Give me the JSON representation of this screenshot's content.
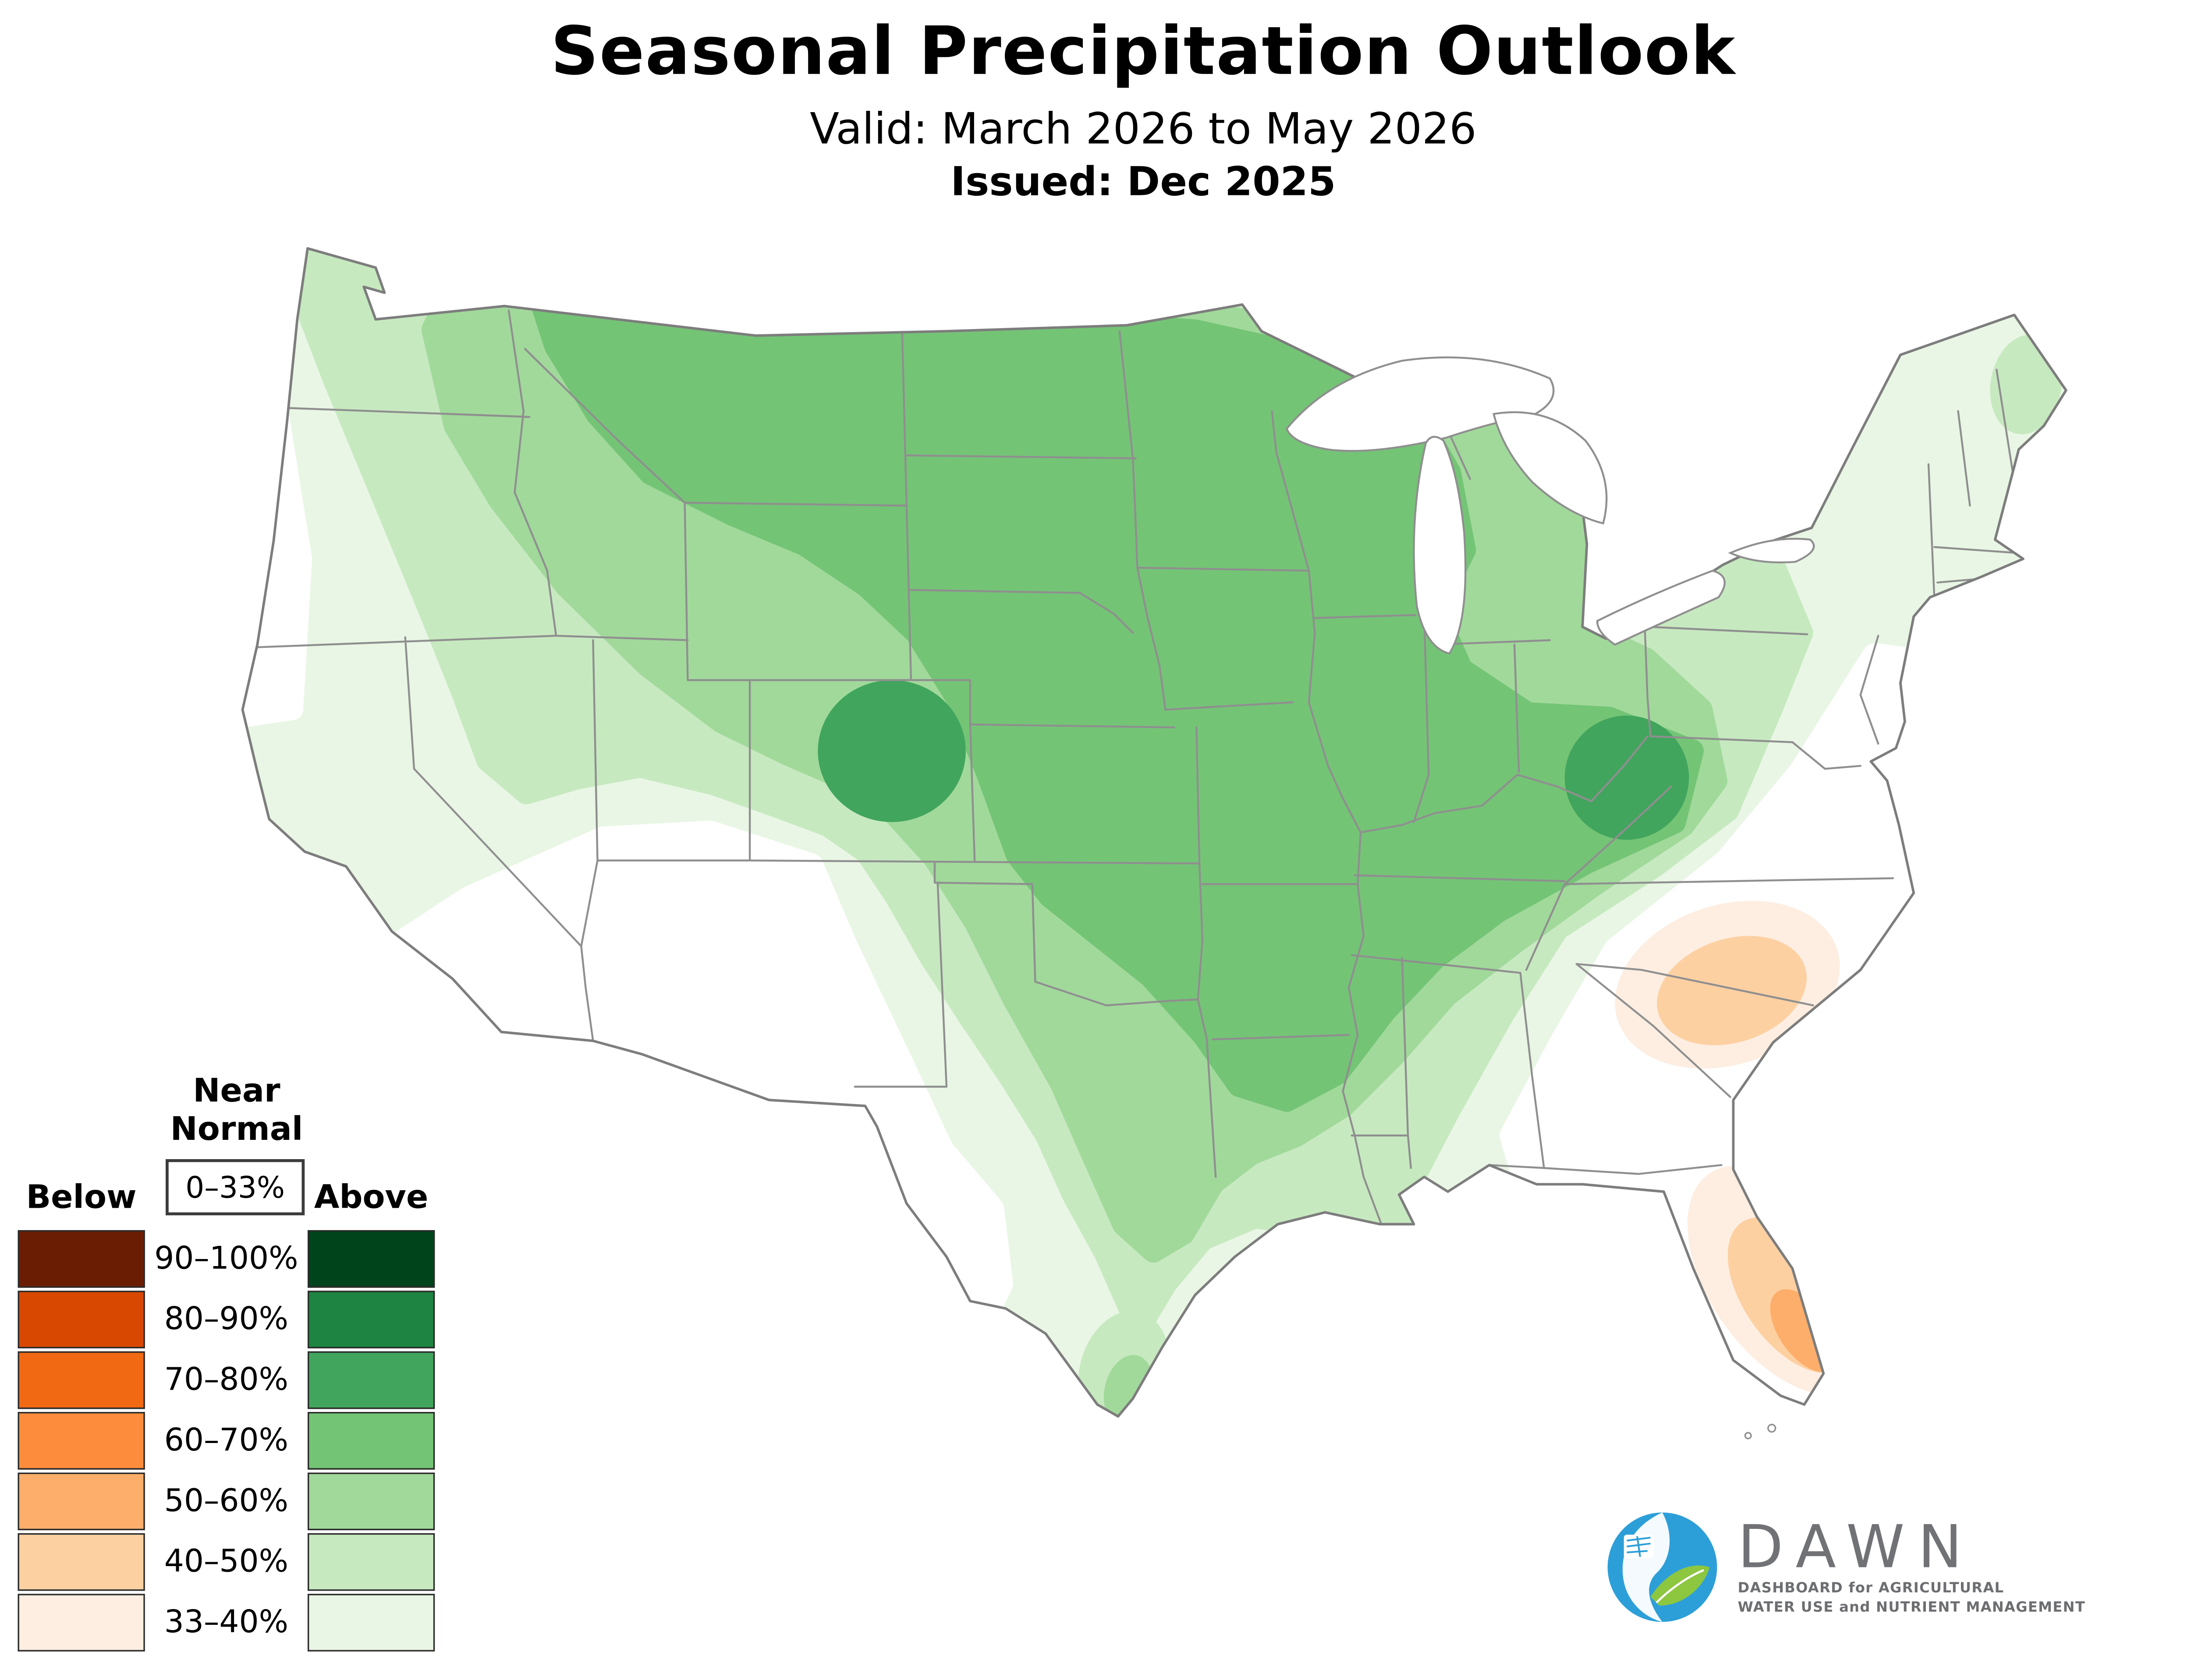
{
  "header": {
    "title": "Seasonal Precipitation Outlook",
    "valid_line": "Valid: March 2026 to May 2026",
    "issued_line": "Issued: Dec 2025"
  },
  "legend": {
    "near_normal_label": "Near Normal",
    "near_normal_range": "0–33%",
    "below_label": "Below",
    "above_label": "Above",
    "rows": [
      {
        "range": "90–100%",
        "below": "#6b1d04",
        "above": "#00441b"
      },
      {
        "range": "80–90%",
        "below": "#d94801",
        "above": "#1d8441"
      },
      {
        "range": "70–80%",
        "below": "#f16913",
        "above": "#41a55d"
      },
      {
        "range": "60–70%",
        "below": "#fd8d3c",
        "above": "#74c476"
      },
      {
        "range": "50–60%",
        "below": "#fdae6b",
        "above": "#a1d99b"
      },
      {
        "range": "40–50%",
        "below": "#fdd0a2",
        "above": "#c7e9c0"
      },
      {
        "range": "33–40%",
        "below": "#fdeee1",
        "above": "#e9f6e5"
      }
    ]
  },
  "map": {
    "region": "Contiguous United States",
    "variable": "Seasonal precipitation outlook probability",
    "features": [
      {
        "area": "Northern Rockies, Northern Plains, Upper Midwest, Mid-South corridor",
        "category": "Above",
        "probability": "60–70%"
      },
      {
        "area": "Southeast Wyoming / Nebraska panhandle",
        "category": "Above",
        "probability": "70–80%"
      },
      {
        "area": "Ohio Valley",
        "category": "Above",
        "probability": "70–80%"
      },
      {
        "area": "Broad central, northern and eastern U.S.",
        "category": "Above",
        "probability": "33–60%"
      },
      {
        "area": "Southwest (southern California, Arizona, New Mexico, far west Texas)",
        "category": "Near Normal",
        "probability": "0–33%"
      },
      {
        "area": "Southeast coastal plain (Virginia to Georgia) and south Texas band",
        "category": "Near Normal",
        "probability": "0–33%"
      },
      {
        "area": "South Carolina",
        "category": "Below",
        "probability": "40–50%"
      },
      {
        "area": "Central and southern Florida peninsula",
        "category": "Below",
        "probability": "40–60%"
      }
    ],
    "border_color": "#8f8f8f",
    "water_color": "#ffffff"
  },
  "logo": {
    "name": "DAWN",
    "tagline_line1": "DASHBOARD for AGRICULTURAL",
    "tagline_line2": "WATER USE and NUTRIENT MANAGEMENT",
    "circle_blue": "#2d9fd8",
    "leaf_green": "#8dc63f"
  }
}
